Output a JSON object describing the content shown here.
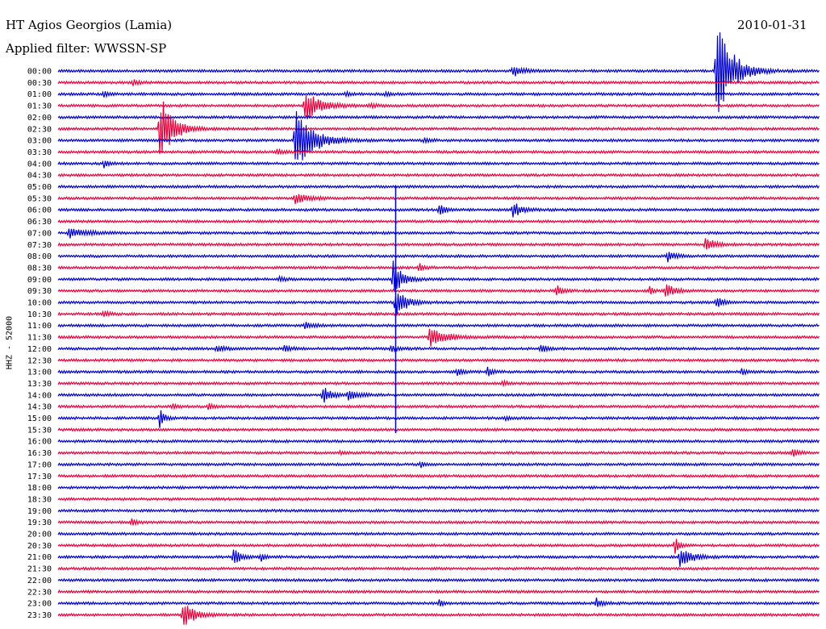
{
  "header": {
    "title": "HT Agios Georgios (Lamia)",
    "filter": "Applied filter: WWSSN-SP",
    "date": "2010-01-31"
  },
  "chart_data": {
    "type": "line",
    "ylabel": "HHZ - 52000",
    "colors": [
      "#0000cc",
      "#e8003c"
    ],
    "x_unit": "minutes",
    "xlim": [
      0,
      30
    ],
    "tick_labels": [
      "00:00",
      "00:30",
      "01:00",
      "01:30",
      "02:00",
      "02:30",
      "03:00",
      "03:30",
      "04:00",
      "04:30",
      "05:00",
      "05:30",
      "06:00",
      "06:30",
      "07:00",
      "07:30",
      "08:00",
      "08:30",
      "09:00",
      "09:30",
      "10:00",
      "10:30",
      "11:00",
      "11:30",
      "12:00",
      "12:30",
      "13:00",
      "13:30",
      "14:00",
      "14:30",
      "15:00",
      "15:30",
      "16:00",
      "16:30",
      "17:00",
      "17:30",
      "18:00",
      "18:30",
      "19:00",
      "19:30",
      "20:00",
      "20:30",
      "21:00",
      "21:30",
      "22:00",
      "22:30",
      "23:00",
      "23:30"
    ],
    "events": [
      {
        "row": 0,
        "t": 17.9,
        "amp": 8,
        "dur": 0.8
      },
      {
        "row": 0,
        "t": 25.9,
        "amp": 84,
        "dur": 1.2
      },
      {
        "row": 1,
        "t": 2.95,
        "amp": 4,
        "dur": 0.5
      },
      {
        "row": 2,
        "t": 1.8,
        "amp": 4,
        "dur": 0.4
      },
      {
        "row": 2,
        "t": 11.3,
        "amp": 3,
        "dur": 0.4
      },
      {
        "row": 2,
        "t": 12.9,
        "amp": 3,
        "dur": 0.4
      },
      {
        "row": 3,
        "t": 9.7,
        "amp": 22,
        "dur": 1.2
      },
      {
        "row": 3,
        "t": 12.3,
        "amp": 4,
        "dur": 0.4
      },
      {
        "row": 5,
        "t": 4.0,
        "amp": 47,
        "dur": 1.0
      },
      {
        "row": 6,
        "t": 9.3,
        "amp": 44,
        "dur": 1.4
      },
      {
        "row": 6,
        "t": 14.4,
        "amp": 4,
        "dur": 0.5
      },
      {
        "row": 7,
        "t": 8.6,
        "amp": 4,
        "dur": 0.5
      },
      {
        "row": 8,
        "t": 1.8,
        "amp": 6,
        "dur": 0.4
      },
      {
        "row": 11,
        "t": 9.3,
        "amp": 7,
        "dur": 1.1
      },
      {
        "row": 12,
        "t": 15.0,
        "amp": 9,
        "dur": 0.5
      },
      {
        "row": 12,
        "t": 17.9,
        "amp": 11,
        "dur": 0.7
      },
      {
        "row": 14,
        "t": 0.4,
        "amp": 6,
        "dur": 1.5
      },
      {
        "row": 15,
        "t": 25.5,
        "amp": 11,
        "dur": 0.7
      },
      {
        "row": 16,
        "t": 24.0,
        "amp": 7,
        "dur": 0.6
      },
      {
        "row": 17,
        "t": 14.2,
        "amp": 6,
        "dur": 0.4
      },
      {
        "row": 18,
        "t": 8.7,
        "amp": 3,
        "dur": 0.5
      },
      {
        "row": 18,
        "t": 13.2,
        "amp": 25,
        "dur": 0.7
      },
      {
        "row": 19,
        "t": 19.6,
        "amp": 8,
        "dur": 0.5
      },
      {
        "row": 19,
        "t": 23.3,
        "amp": 5,
        "dur": 0.3
      },
      {
        "row": 19,
        "t": 23.9,
        "amp": 11,
        "dur": 0.7
      },
      {
        "row": 20,
        "t": 13.3,
        "amp": 22,
        "dur": 0.8
      },
      {
        "row": 20,
        "t": 25.9,
        "amp": 8,
        "dur": 0.6
      },
      {
        "row": 21,
        "t": 1.8,
        "amp": 6,
        "dur": 0.4
      },
      {
        "row": 22,
        "t": 9.7,
        "amp": 4,
        "dur": 0.7
      },
      {
        "row": 23,
        "t": 14.6,
        "amp": 14,
        "dur": 1.2
      },
      {
        "row": 24,
        "t": 6.2,
        "amp": 5,
        "dur": 0.6
      },
      {
        "row": 24,
        "t": 8.9,
        "amp": 4,
        "dur": 0.6
      },
      {
        "row": 24,
        "t": 13.1,
        "amp": 4,
        "dur": 0.6
      },
      {
        "row": 24,
        "t": 19.0,
        "amp": 5,
        "dur": 0.6
      },
      {
        "row": 26,
        "t": 15.7,
        "amp": 6,
        "dur": 0.4
      },
      {
        "row": 26,
        "t": 16.9,
        "amp": 7,
        "dur": 0.4
      },
      {
        "row": 26,
        "t": 26.9,
        "amp": 5,
        "dur": 0.4
      },
      {
        "row": 27,
        "t": 17.5,
        "amp": 4,
        "dur": 0.4
      },
      {
        "row": 28,
        "t": 10.4,
        "amp": 12,
        "dur": 0.7
      },
      {
        "row": 28,
        "t": 11.4,
        "amp": 9,
        "dur": 0.7
      },
      {
        "row": 29,
        "t": 4.5,
        "amp": 4,
        "dur": 0.4
      },
      {
        "row": 29,
        "t": 5.9,
        "amp": 4,
        "dur": 0.4
      },
      {
        "row": 30,
        "t": 4.0,
        "amp": 12,
        "dur": 0.4
      },
      {
        "row": 30,
        "t": 17.6,
        "amp": 3,
        "dur": 0.4
      },
      {
        "row": 33,
        "t": 11.1,
        "amp": 3,
        "dur": 0.3
      },
      {
        "row": 33,
        "t": 28.9,
        "amp": 5,
        "dur": 0.5
      },
      {
        "row": 34,
        "t": 14.3,
        "amp": 5,
        "dur": 0.3
      },
      {
        "row": 39,
        "t": 2.9,
        "amp": 4,
        "dur": 0.4
      },
      {
        "row": 41,
        "t": 24.3,
        "amp": 14,
        "dur": 0.3
      },
      {
        "row": 42,
        "t": 6.9,
        "amp": 11,
        "dur": 0.6
      },
      {
        "row": 42,
        "t": 8.0,
        "amp": 6,
        "dur": 0.3
      },
      {
        "row": 42,
        "t": 24.5,
        "amp": 14,
        "dur": 0.9
      },
      {
        "row": 46,
        "t": 15.0,
        "amp": 5,
        "dur": 0.3
      },
      {
        "row": 46,
        "t": 21.2,
        "amp": 7,
        "dur": 0.5
      },
      {
        "row": 47,
        "t": 4.9,
        "amp": 18,
        "dur": 0.9
      }
    ],
    "spikes": [
      {
        "row": 20,
        "t": 13.3,
        "up": 145,
        "down": 162
      }
    ]
  }
}
